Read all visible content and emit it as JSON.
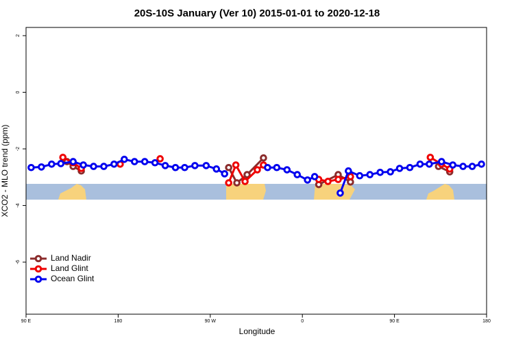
{
  "chart_data": {
    "type": "line",
    "title": "20S-10S January (Ver 10)   2015-01-01 to 2020-12-18",
    "x_label": "Longitude",
    "y_label": "XCO2 - MLO trend (ppm)",
    "xlim": [
      90,
      540
    ],
    "xticks": [
      {
        "value": 90,
        "label": "90 E"
      },
      {
        "value": 180,
        "label": "180"
      },
      {
        "value": 270,
        "label": "90 W"
      },
      {
        "value": 360,
        "label": "0"
      },
      {
        "value": 450,
        "label": "90 E"
      },
      {
        "value": 540,
        "label": "180"
      }
    ],
    "ylim": [
      -7.84,
      2.29
    ],
    "yticks": [
      2,
      0,
      -2,
      -4,
      -6
    ],
    "legend": "bottom-left",
    "series": [
      {
        "name": "Land Nadir",
        "color": "#8b2c2c",
        "x": [
          130,
          136,
          144,
          null,
          288,
          296,
          306,
          322,
          null,
          376,
          395,
          407,
          null,
          493,
          504
        ],
        "values": [
          -2.45,
          -2.62,
          -2.78,
          null,
          -2.66,
          -3.2,
          -2.91,
          -2.32,
          null,
          -3.26,
          -2.91,
          -3.17,
          null,
          -2.62,
          -2.81
        ]
      },
      {
        "name": "Land Glint",
        "color": "#ee0000",
        "x": [
          126,
          136,
          144,
          null,
          182,
          null,
          221,
          null,
          288,
          295,
          304,
          316,
          322,
          null,
          376,
          385,
          395,
          407,
          null,
          485,
          496,
          504
        ],
        "values": [
          -2.3,
          -2.49,
          -2.69,
          null,
          -2.54,
          null,
          -2.35,
          null,
          -3.2,
          -2.57,
          -3.15,
          -2.74,
          -2.57,
          null,
          -3.08,
          -3.15,
          -3.08,
          -2.98,
          null,
          -2.3,
          -2.54,
          -2.71
        ]
      },
      {
        "name": "Ocean Glint",
        "color": "#0000ee",
        "x": [
          95,
          105,
          115,
          124,
          136,
          146,
          156,
          166,
          176,
          186,
          196,
          206,
          216,
          226,
          236,
          245,
          255,
          266,
          276,
          284,
          null,
          326,
          335,
          345,
          355,
          365,
          372,
          null,
          397,
          405,
          416,
          426,
          436,
          446,
          455,
          465,
          475,
          484,
          496,
          507,
          517,
          526,
          535
        ],
        "values": [
          -2.66,
          -2.64,
          -2.54,
          -2.52,
          -2.45,
          -2.57,
          -2.62,
          -2.62,
          -2.54,
          -2.37,
          -2.45,
          -2.45,
          -2.49,
          -2.59,
          -2.66,
          -2.66,
          -2.59,
          -2.59,
          -2.71,
          -2.88,
          null,
          -2.66,
          -2.66,
          -2.74,
          -2.91,
          -3.1,
          -2.98,
          null,
          -3.56,
          -2.78,
          -2.95,
          -2.91,
          -2.83,
          -2.81,
          -2.69,
          -2.66,
          -2.54,
          -2.54,
          -2.45,
          -2.57,
          -2.62,
          -2.62,
          -2.54
        ]
      }
    ]
  }
}
